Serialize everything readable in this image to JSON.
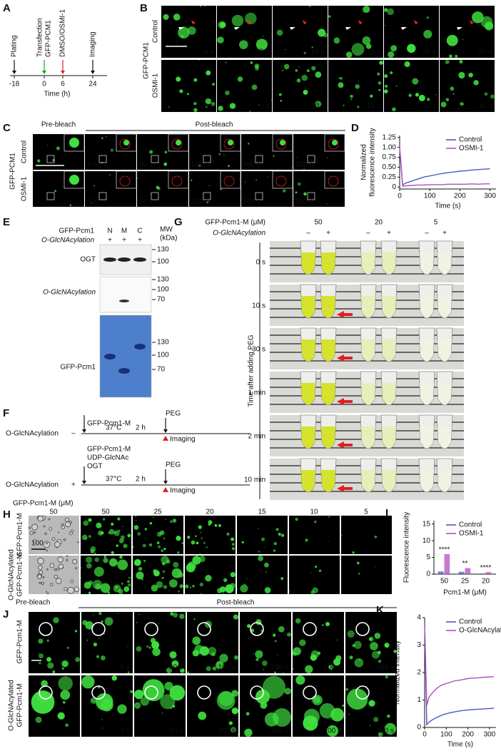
{
  "panels": {
    "A": {
      "letter": "A",
      "ticks": [
        -18,
        0,
        6,
        24
      ],
      "xlabel": "Time (h)",
      "events": [
        {
          "label": "Plating"
        },
        {
          "label": "Transfection",
          "sub": "GFP-PCM1"
        },
        {
          "label": "DMSO/OSMI-1"
        },
        {
          "label": "Imaging"
        }
      ]
    },
    "B": {
      "letter": "B",
      "y_label": "GFP-PCM1",
      "rows": [
        "Control",
        "OSMI-1"
      ],
      "times": [
        "0 s",
        "5 s",
        "10 s",
        "15 s",
        "25 s",
        "30 s"
      ],
      "scale": "5"
    },
    "C": {
      "letter": "C",
      "pre": "Pre-bleach",
      "post": "Post-bleach",
      "y_label": "GFP-PCM1",
      "rows": [
        "Control",
        "OSMI-1"
      ],
      "times": [
        "0 s",
        "50 s",
        "100 s",
        "200 s",
        "300 s"
      ]
    },
    "E": {
      "letter": "E",
      "protein": "GFP-Pcm1",
      "mod": "O-GlcNAcylation",
      "lanes": [
        "N",
        "M",
        "C"
      ],
      "signs": [
        "+",
        "+",
        "+"
      ],
      "mw": [
        "MW",
        "(kDa)"
      ],
      "blots": [
        {
          "label": "OGT",
          "markers": [
            130,
            100
          ]
        },
        {
          "label": "O-GlcNAcylation",
          "markers": [
            130,
            100,
            70
          ]
        },
        {
          "label": "GFP-Pcm1",
          "markers": [
            130,
            100,
            70
          ]
        }
      ]
    },
    "F": {
      "letter": "F",
      "rows": [
        {
          "label": "O-GlcNAcylation",
          "sign": "–",
          "reagents": [
            "GFP-Pcm1-M"
          ],
          "temp": "37°C",
          "time": "2 h",
          "peg": "PEG",
          "imaging": "Imaging"
        },
        {
          "label": "O-GlcNAcylation",
          "sign": "+",
          "reagents": [
            "GFP-Pcm1-M",
            "UDP-GlcNAc",
            "OGT"
          ],
          "temp": "37°C",
          "time": "2 h",
          "peg": "PEG",
          "imaging": "Imaging"
        }
      ]
    },
    "G": {
      "letter": "G",
      "conc_label": "GFP-Pcm1-M (μM)",
      "concs": [
        50,
        20,
        5
      ],
      "mod": "O-GlcNAcylation",
      "signs": [
        "–",
        "+"
      ],
      "y_label": "Time after adding PEG",
      "times": [
        "0 s",
        "10 s",
        "30 s",
        "1 min",
        "2 min",
        "10 min"
      ]
    },
    "H": {
      "letter": "H",
      "conc_label": "GFP-Pcm1-M (μM)",
      "concs": [
        50,
        50,
        25,
        20,
        15,
        10,
        5
      ],
      "rows": [
        [
          "GFP-Pcm1-M"
        ],
        [
          "O-GlcNAcylated",
          "GFP-Pcm1-M"
        ]
      ],
      "scale": "100"
    },
    "J": {
      "letter": "J",
      "pre": "Pre-bleach",
      "post": "Post-bleach",
      "times": [
        "0 s",
        "50 s",
        "100 s",
        "150 s",
        "200 s",
        "250 s"
      ],
      "rows": [
        [
          "GFP-Pcm1-M"
        ],
        [
          "O-GlcNAcylated",
          "GFP-Pcm1-M"
        ]
      ]
    }
  },
  "chart_data": [
    {
      "panel": "D",
      "type": "line",
      "ylabel": [
        "Normalized",
        "fluorescence intensity"
      ],
      "xlabel": "Time (s)",
      "x": [
        0,
        10,
        20,
        40,
        60,
        80,
        100,
        120,
        140,
        160,
        180,
        200,
        220,
        240,
        260,
        280,
        300
      ],
      "series": [
        {
          "name": "Control",
          "color": "#4a5ac4",
          "values": [
            1.0,
            0.05,
            0.1,
            0.15,
            0.2,
            0.25,
            0.28,
            0.31,
            0.34,
            0.36,
            0.38,
            0.4,
            0.41,
            0.43,
            0.44,
            0.45,
            0.46
          ]
        },
        {
          "name": "OSMI-1",
          "color": "#b04fc0",
          "values": [
            1.0,
            0.02,
            0.03,
            0.04,
            0.05,
            0.05,
            0.06,
            0.06,
            0.06,
            0.07,
            0.07,
            0.07,
            0.07,
            0.08,
            0.07,
            0.08,
            0.08
          ]
        }
      ],
      "xlim": [
        0,
        320
      ],
      "ylim": [
        -0.05,
        1.3
      ],
      "xticks": [
        0,
        100,
        200,
        300
      ],
      "yticks": [
        0,
        0.25,
        {
          "value": 0.5,
          "label": "0.50"
        },
        0.75,
        {
          "value": 1,
          "label": "1.00"
        },
        1.25
      ]
    },
    {
      "panel": "I",
      "type": "bar",
      "ylabel": [
        "Fluorescence intensity"
      ],
      "xlabel": "Pcm1-M (μM)",
      "categories": [
        "50",
        "25",
        "20"
      ],
      "series": [
        {
          "name": "Control",
          "color": "#4a5ac4",
          "values": [
            0.8,
            0.7,
            0.2
          ]
        },
        {
          "name": "OSMI-1",
          "color": "#b04fc0",
          "values": [
            6,
            1.8,
            0.6
          ]
        }
      ],
      "annotations": [
        "****",
        "**",
        "****"
      ],
      "ylim": [
        0,
        16
      ],
      "yticks": [
        0,
        5,
        10,
        15
      ]
    },
    {
      "panel": "K",
      "type": "line",
      "ylabel": [
        "Normalized intensity"
      ],
      "xlabel": "Time (s)",
      "x": [
        0,
        10,
        20,
        40,
        60,
        80,
        100,
        120,
        140,
        160,
        180,
        200,
        220,
        240,
        260,
        280,
        300,
        320
      ],
      "series": [
        {
          "name": "Control",
          "color": "#4a5ac4",
          "values": [
            3.8,
            0.1,
            0.2,
            0.3,
            0.38,
            0.45,
            0.5,
            0.54,
            0.57,
            0.6,
            0.62,
            0.64,
            0.65,
            0.66,
            0.67,
            0.68,
            0.69,
            0.7
          ]
        },
        {
          "name": "O-GlcNAcylated",
          "color": "#b04fc0",
          "values": [
            3.8,
            0.8,
            1.1,
            1.3,
            1.45,
            1.55,
            1.6,
            1.65,
            1.7,
            1.72,
            1.75,
            1.78,
            1.8,
            1.8,
            1.82,
            1.83,
            1.84,
            1.85
          ]
        }
      ],
      "xlim": [
        0,
        330
      ],
      "ylim": [
        0,
        4
      ],
      "xticks": [
        0,
        100,
        200,
        300
      ],
      "yticks": [
        0,
        1,
        2,
        3,
        4
      ]
    }
  ]
}
